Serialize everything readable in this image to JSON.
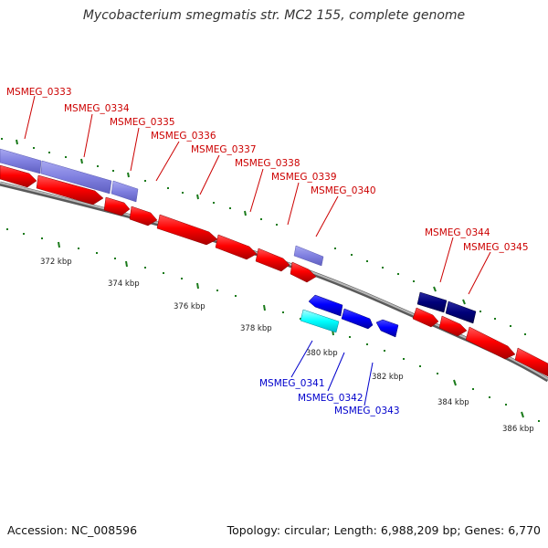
{
  "title": "Mycobacterium smegmatis str. MC2 155, complete genome",
  "footer": {
    "accession": "Accession: NC_008596",
    "summary": "Topology: circular; Length: 6,988,209 bp; Genes: 6,770"
  },
  "colors": {
    "forward_gene": "#ff0000",
    "reverse_gene": "#0000ff",
    "cds_light": "#8080e0",
    "cds_dark": "#00007a",
    "cds_cyan": "#00ffff",
    "forward_label": "#cc0000",
    "reverse_label": "#0000cc",
    "backbone": "#808080",
    "ticks": "#1a7a1a"
  },
  "axis_labels": [
    "372 kbp",
    "374 kbp",
    "376 kbp",
    "378 kbp",
    "380 kbp",
    "382 kbp",
    "384 kbp",
    "386 kbp"
  ],
  "forward_labels": [
    "MSMEG_0333",
    "MSMEG_0334",
    "MSMEG_0335",
    "MSMEG_0336",
    "MSMEG_0337",
    "MSMEG_0338",
    "MSMEG_0339",
    "MSMEG_0340",
    "MSMEG_0344",
    "MSMEG_0345"
  ],
  "reverse_labels": [
    "MSMEG_0341",
    "MSMEG_0342",
    "MSMEG_0343"
  ]
}
